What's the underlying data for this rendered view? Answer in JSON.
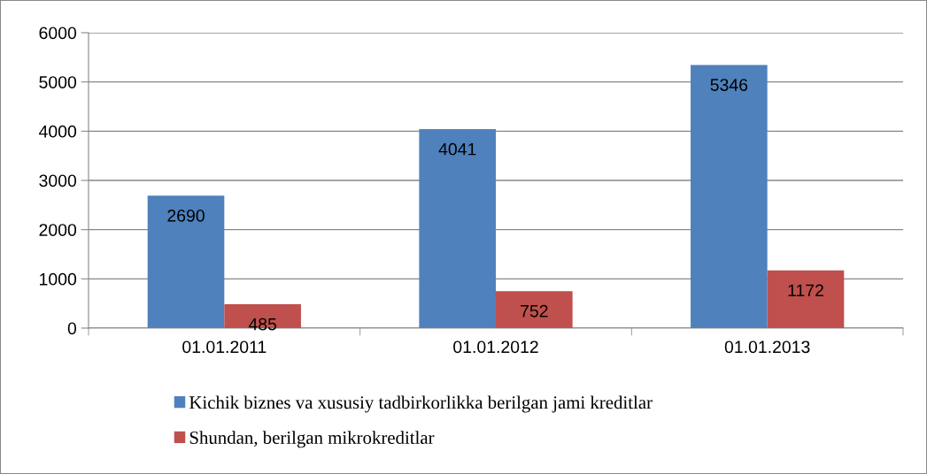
{
  "chart_data": {
    "type": "bar",
    "categories": [
      "01.01.2011",
      "01.01.2012",
      "01.01.2013"
    ],
    "series": [
      {
        "name": "Kichik biznes va xususiy tadbirkorlikka berilgan jami kreditlar",
        "color": "#4f81bd",
        "values": [
          2690,
          4041,
          5346
        ]
      },
      {
        "name": "Shundan, berilgan mikrokreditlar",
        "color": "#c0504d",
        "values": [
          485,
          752,
          1172
        ]
      }
    ],
    "ylim": [
      0,
      6000
    ],
    "yticks": [
      0,
      1000,
      2000,
      3000,
      4000,
      5000,
      6000
    ],
    "grid": "y",
    "legend": "bottom",
    "data_labels": true
  }
}
